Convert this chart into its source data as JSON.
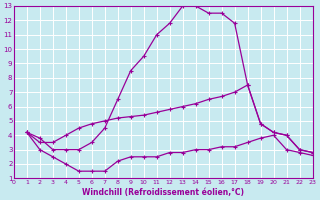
{
  "xlabel": "Windchill (Refroidissement éolien,°C)",
  "background_color": "#c8eaf0",
  "line_color": "#990099",
  "grid_color": "#ffffff",
  "xlim": [
    0,
    23
  ],
  "ylim": [
    1,
    13
  ],
  "xticks": [
    0,
    1,
    2,
    3,
    4,
    5,
    6,
    7,
    8,
    9,
    10,
    11,
    12,
    13,
    14,
    15,
    16,
    17,
    18,
    19,
    20,
    21,
    22,
    23
  ],
  "yticks": [
    1,
    2,
    3,
    4,
    5,
    6,
    7,
    8,
    9,
    10,
    11,
    12,
    13
  ],
  "line1_x": [
    1,
    2,
    3,
    4,
    5,
    6,
    7,
    8,
    9,
    10,
    11,
    12,
    13,
    14,
    15,
    16,
    17,
    18,
    19,
    20,
    21,
    22,
    23
  ],
  "line1_y": [
    4.2,
    3.8,
    3.0,
    3.0,
    3.0,
    3.5,
    4.5,
    6.5,
    8.5,
    9.5,
    11.0,
    11.8,
    13.0,
    13.0,
    12.5,
    12.5,
    11.8,
    7.5,
    4.8,
    4.2,
    4.0,
    3.0,
    2.8
  ],
  "line2_x": [
    1,
    2,
    3,
    4,
    5,
    6,
    7,
    8,
    9,
    10,
    11,
    12,
    13,
    14,
    15,
    16,
    17,
    18,
    19,
    20,
    21,
    22,
    23
  ],
  "line2_y": [
    4.2,
    3.5,
    3.5,
    4.0,
    4.5,
    4.8,
    5.0,
    5.2,
    5.3,
    5.4,
    5.6,
    5.8,
    6.0,
    6.2,
    6.5,
    6.7,
    7.0,
    7.5,
    4.8,
    4.2,
    4.0,
    3.0,
    2.8
  ],
  "line3_x": [
    1,
    2,
    3,
    4,
    5,
    6,
    7,
    8,
    9,
    10,
    11,
    12,
    13,
    14,
    15,
    16,
    17,
    18,
    19,
    20,
    21,
    22,
    23
  ],
  "line3_y": [
    4.2,
    3.0,
    2.5,
    2.0,
    1.5,
    1.5,
    1.5,
    2.2,
    2.5,
    2.5,
    2.5,
    2.8,
    2.8,
    3.0,
    3.0,
    3.2,
    3.2,
    3.5,
    3.8,
    4.0,
    3.0,
    2.8,
    2.6
  ]
}
